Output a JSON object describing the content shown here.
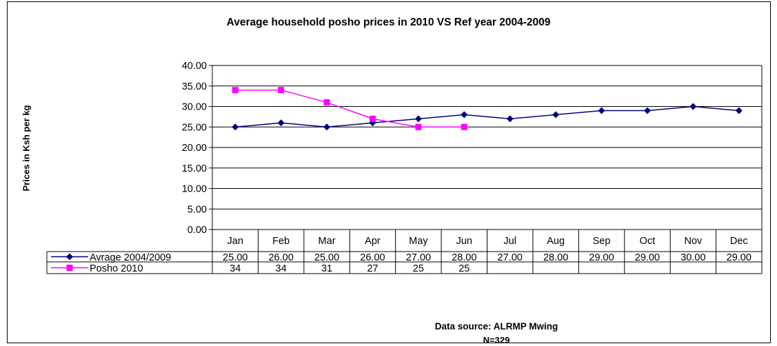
{
  "chart_data": {
    "type": "line",
    "title": "Average household posho prices in 2010 VS Ref year 2004-2009",
    "ylabel": "Prices in Ksh per kg",
    "xlabel": "",
    "ylim": [
      0,
      40
    ],
    "yticks": [
      "0.00",
      "5.00",
      "10.00",
      "15.00",
      "20.00",
      "25.00",
      "30.00",
      "35.00",
      "40.00"
    ],
    "categories": [
      "Jan",
      "Feb",
      "Mar",
      "Apr",
      "May",
      "Jun",
      "Jul",
      "Aug",
      "Sep",
      "Oct",
      "Nov",
      "Dec"
    ],
    "grid": true,
    "legend": "in data table",
    "series": [
      {
        "name": "Avrage 2004/2009",
        "color": "#000080",
        "marker": "diamond",
        "values": [
          25,
          26,
          25,
          26,
          27,
          28,
          27,
          28,
          29,
          29,
          30,
          29
        ],
        "table_values": [
          "25.00",
          "26.00",
          "25.00",
          "26.00",
          "27.00",
          "28.00",
          "27.00",
          "28.00",
          "29.00",
          "29.00",
          "30.00",
          "29.00"
        ]
      },
      {
        "name": "Posho 2010",
        "color": "#ff00ff",
        "marker": "square",
        "values": [
          34,
          34,
          31,
          27,
          25,
          25,
          null,
          null,
          null,
          null,
          null,
          null
        ],
        "table_values": [
          "34",
          "34",
          "31",
          "27",
          "25",
          "25",
          "",
          "",
          "",
          "",
          "",
          ""
        ]
      }
    ],
    "annotations": [
      "Data source: ALRMP Mwing",
      "N=329"
    ]
  }
}
